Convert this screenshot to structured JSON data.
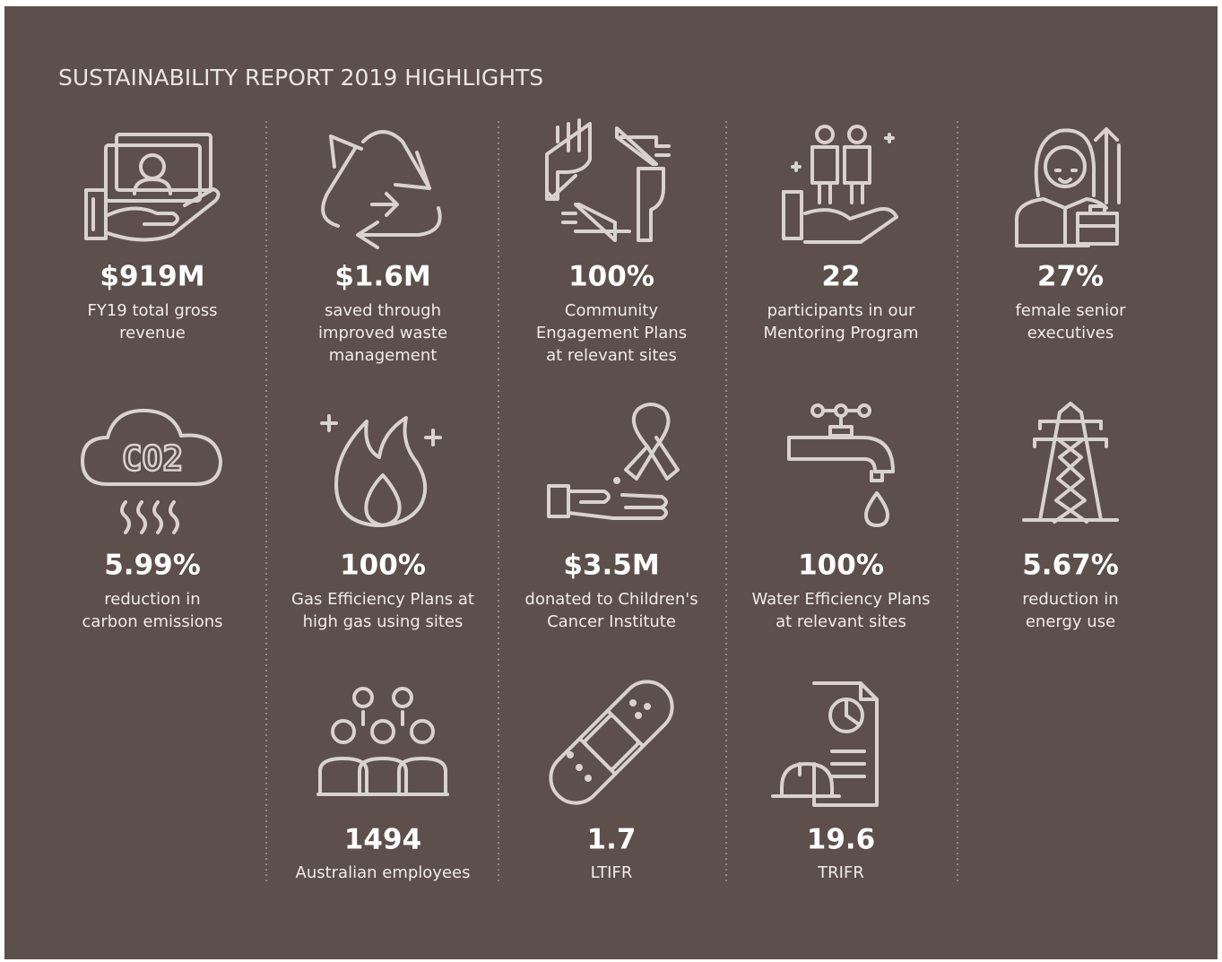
{
  "title": "SUSTAINABILITY REPORT 2019 HIGHLIGHTS",
  "rows": [
    [
      {
        "value": "$919M",
        "label": [
          "FY19 total gross",
          "revenue"
        ]
      },
      {
        "value": "$1.6M",
        "label": [
          "saved through",
          "improved waste",
          "management"
        ]
      },
      {
        "value": "100%",
        "label": [
          "Community",
          "Engagement Plans",
          "at relevant sites"
        ]
      },
      {
        "value": "22",
        "label": [
          "participants in our",
          "Mentoring Program"
        ]
      },
      {
        "value": "27%",
        "label": [
          "female senior",
          "executives"
        ]
      }
    ],
    [
      {
        "value": "5.99%",
        "label": [
          "reduction in",
          "carbon emissions"
        ],
        "icon_text": "CO2"
      },
      {
        "value": "100%",
        "label": [
          "Gas Efficiency Plans at",
          "high gas using sites"
        ]
      },
      {
        "value": "$3.5M",
        "label": [
          "donated to Children's",
          "Cancer Institute"
        ]
      },
      {
        "value": "100%",
        "label": [
          "Water Efficiency Plans",
          "at relevant sites"
        ]
      },
      {
        "value": "5.67%",
        "label": [
          "reduction in",
          "energy use"
        ]
      }
    ],
    [
      {
        "value": "1494",
        "label": [
          "Australian employees"
        ]
      },
      {
        "value": "1.7",
        "label": [
          "LTIFR"
        ]
      },
      {
        "value": "19.6",
        "label": [
          "TRIFR"
        ]
      }
    ]
  ]
}
